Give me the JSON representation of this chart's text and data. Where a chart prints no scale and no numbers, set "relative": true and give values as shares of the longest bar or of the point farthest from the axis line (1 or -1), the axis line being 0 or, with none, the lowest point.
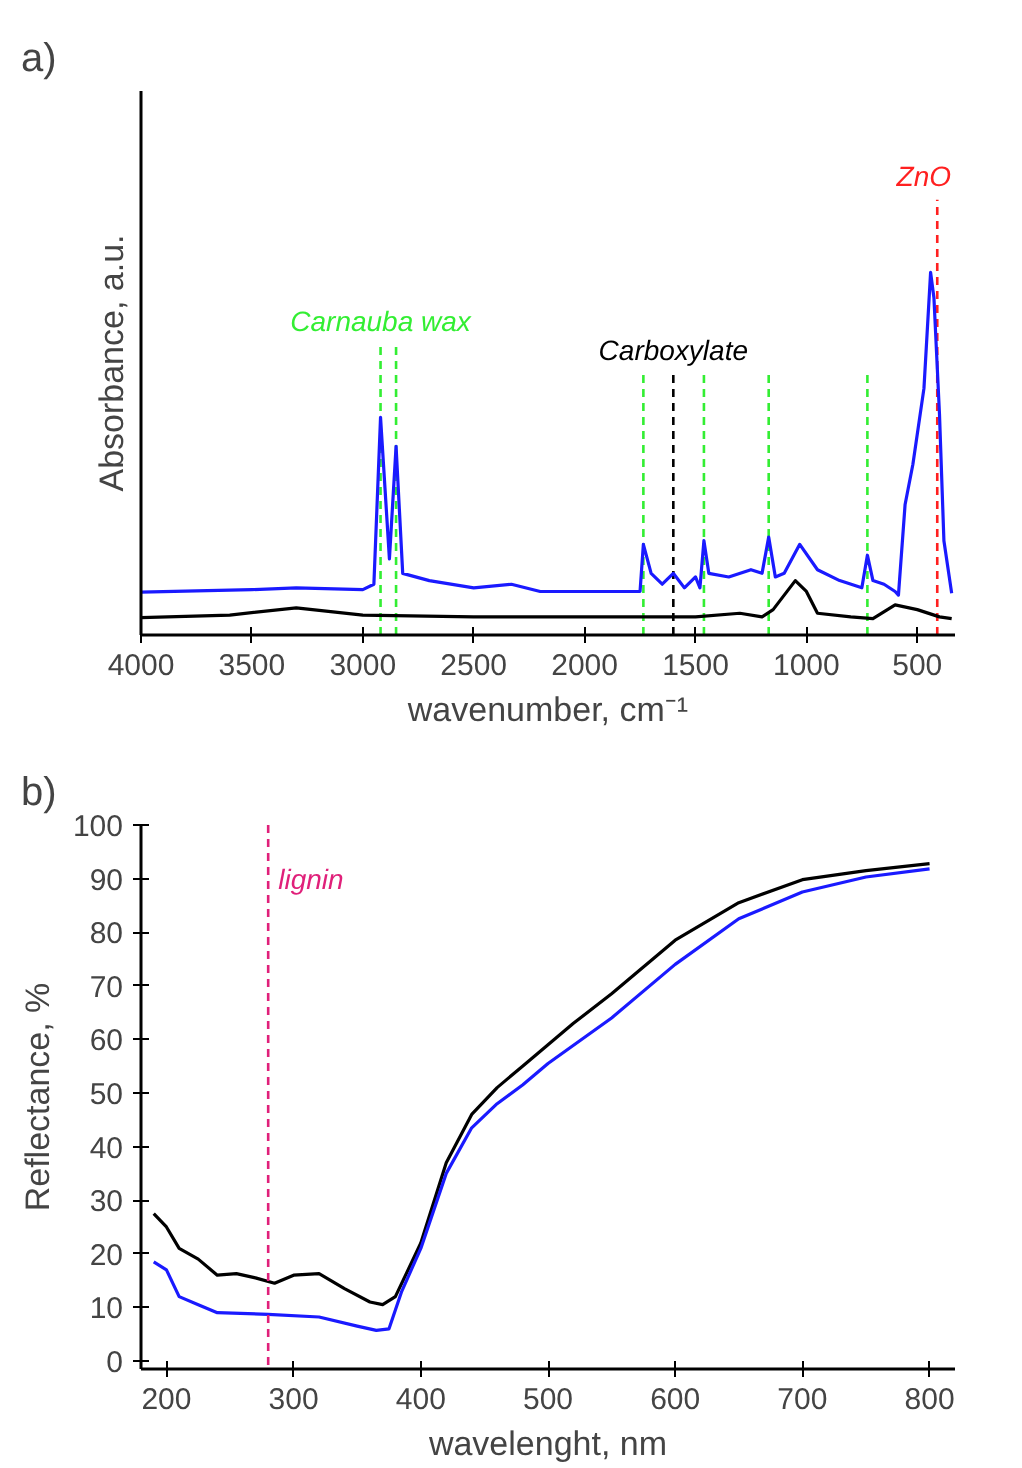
{
  "chart_data": [
    {
      "type": "line",
      "title": "a)",
      "xlabel": "wavenumber, cm⁻¹",
      "ylabel": "Absorbance, a.u.",
      "relative": true,
      "xlim": [
        4000,
        330
      ],
      "xticks": [
        4000,
        3500,
        3000,
        2500,
        2000,
        1500,
        1000,
        500
      ],
      "series": [
        {
          "color": "#1a1aff",
          "x": [
            4000,
            3500,
            3300,
            3000,
            2950,
            2920,
            2880,
            2850,
            2820,
            2700,
            2500,
            2330,
            2200,
            2000,
            1750,
            1735,
            1700,
            1650,
            1600,
            1550,
            1500,
            1480,
            1462,
            1440,
            1350,
            1250,
            1200,
            1170,
            1140,
            1100,
            1030,
            950,
            850,
            750,
            725,
            700,
            650,
            600,
            585,
            555,
            520,
            470,
            440,
            425,
            400,
            380,
            345
          ],
          "values": [
            0.118,
            0.125,
            0.13,
            0.125,
            0.14,
            0.6,
            0.21,
            0.52,
            0.17,
            0.15,
            0.13,
            0.14,
            0.12,
            0.12,
            0.12,
            0.25,
            0.17,
            0.14,
            0.17,
            0.13,
            0.16,
            0.13,
            0.26,
            0.17,
            0.16,
            0.18,
            0.17,
            0.27,
            0.16,
            0.17,
            0.25,
            0.18,
            0.15,
            0.13,
            0.22,
            0.15,
            0.14,
            0.12,
            0.11,
            0.36,
            0.47,
            0.68,
            1.0,
            0.93,
            0.61,
            0.26,
            0.115
          ]
        },
        {
          "color": "#000000",
          "x": [
            4000,
            3600,
            3300,
            3000,
            2500,
            2000,
            1500,
            1300,
            1200,
            1150,
            1050,
            1000,
            950,
            800,
            700,
            600,
            500,
            400,
            345
          ],
          "values": [
            0.048,
            0.055,
            0.075,
            0.055,
            0.05,
            0.05,
            0.05,
            0.06,
            0.05,
            0.07,
            0.15,
            0.12,
            0.06,
            0.05,
            0.045,
            0.083,
            0.07,
            0.05,
            0.045
          ]
        }
      ],
      "ref_lines": [
        {
          "axis": "x",
          "value": 2920,
          "color": "#33ee33",
          "line_style": "dashed",
          "label": "Carnauba wax"
        },
        {
          "axis": "x",
          "value": 2850,
          "color": "#33ee33",
          "line_style": "dashed"
        },
        {
          "axis": "x",
          "value": 1735,
          "color": "#33ee33",
          "line_style": "dashed"
        },
        {
          "axis": "x",
          "value": 1462,
          "color": "#33ee33",
          "line_style": "dashed"
        },
        {
          "axis": "x",
          "value": 1170,
          "color": "#33ee33",
          "line_style": "dashed"
        },
        {
          "axis": "x",
          "value": 725,
          "color": "#33ee33",
          "line_style": "dashed"
        },
        {
          "axis": "x",
          "value": 1600,
          "color": "#000000",
          "line_style": "dashed",
          "label": "Carboxylate"
        },
        {
          "axis": "x",
          "value": 410,
          "color": "#ff2020",
          "line_style": "dashed",
          "label": "ZnO"
        }
      ],
      "grid": false
    },
    {
      "type": "line",
      "title": "b)",
      "xlabel": "wavelenght, nm",
      "ylabel": "Reflectance, %",
      "xlim": [
        180,
        820
      ],
      "xticks": [
        200,
        300,
        400,
        500,
        600,
        700,
        800
      ],
      "ylim": [
        -1.5,
        100
      ],
      "yticks": [
        0,
        10,
        20,
        30,
        40,
        50,
        60,
        70,
        80,
        90,
        100
      ],
      "series": [
        {
          "color": "#000000",
          "x": [
            190,
            200,
            210,
            225,
            240,
            255,
            270,
            285,
            300,
            320,
            340,
            360,
            370,
            380,
            400,
            420,
            440,
            460,
            480,
            500,
            520,
            550,
            600,
            650,
            700,
            750,
            800
          ],
          "values": [
            27.5,
            25,
            21,
            19,
            16,
            16.3,
            15.5,
            14.5,
            16,
            16.3,
            13.5,
            11,
            10.5,
            12,
            22,
            37,
            46,
            51,
            55,
            59,
            63,
            68.5,
            78.5,
            85.5,
            89.8,
            91.5,
            92.8
          ]
        },
        {
          "color": "#1a1aff",
          "x": [
            190,
            200,
            210,
            225,
            240,
            280,
            320,
            350,
            365,
            375,
            385,
            400,
            420,
            440,
            460,
            480,
            500,
            550,
            600,
            650,
            700,
            750,
            800
          ],
          "values": [
            18.5,
            17,
            12,
            10.5,
            9,
            8.7,
            8.2,
            6.5,
            5.7,
            6,
            13,
            21,
            35,
            43.5,
            48,
            51.5,
            55.5,
            64,
            74,
            82.5,
            87.5,
            90.3,
            91.8
          ]
        }
      ],
      "ref_lines": [
        {
          "axis": "x",
          "value": 280,
          "color": "#e0207a",
          "line_style": "dashed",
          "label": "lignin"
        }
      ],
      "grid": false
    }
  ]
}
